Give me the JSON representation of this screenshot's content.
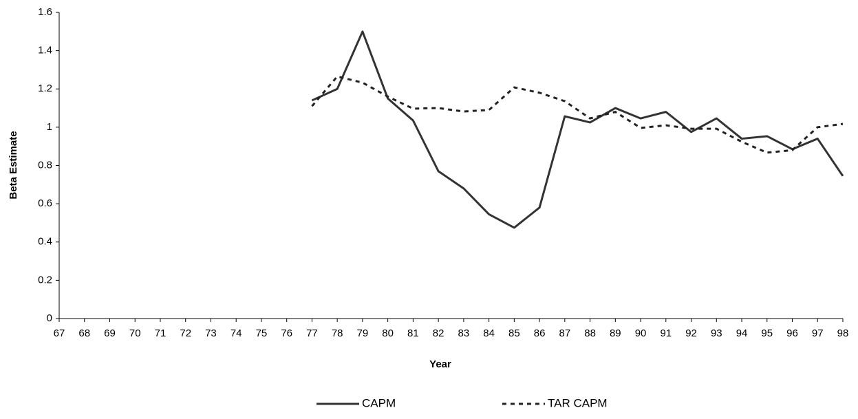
{
  "chart_data": {
    "type": "line",
    "x_label": "Year",
    "y_label": "Beta Estimate",
    "categories": [
      "67",
      "68",
      "69",
      "70",
      "71",
      "72",
      "73",
      "74",
      "75",
      "76",
      "77",
      "78",
      "79",
      "80",
      "81",
      "82",
      "83",
      "84",
      "85",
      "86",
      "87",
      "88",
      "89",
      "90",
      "91",
      "92",
      "93",
      "94",
      "95",
      "96",
      "97",
      "98"
    ],
    "series": [
      {
        "name": "CAPM",
        "color": "#333333",
        "line_style": "solid",
        "values": [
          null,
          null,
          null,
          null,
          null,
          null,
          null,
          null,
          null,
          null,
          1.14,
          1.2,
          1.5,
          1.15,
          1.035,
          0.77,
          0.68,
          0.545,
          0.475,
          0.58,
          1.057,
          1.025,
          1.1,
          1.046,
          1.08,
          0.975,
          1.046,
          0.94,
          0.953,
          0.885,
          0.94,
          0.745
        ]
      },
      {
        "name": "TAR CAPM",
        "color": "#222222",
        "line_style": "dashed",
        "values": [
          null,
          null,
          null,
          null,
          null,
          null,
          null,
          null,
          null,
          null,
          1.11,
          1.265,
          1.233,
          1.16,
          1.097,
          1.1,
          1.082,
          1.09,
          1.208,
          1.18,
          1.136,
          1.046,
          1.08,
          0.996,
          1.01,
          0.992,
          0.992,
          0.924,
          0.867,
          0.88,
          1.0,
          1.017
        ]
      }
    ],
    "ylim": [
      0,
      1.6
    ],
    "yticks": [
      0,
      0.2,
      0.4,
      0.6,
      0.8,
      1,
      1.2,
      1.4,
      1.6
    ],
    "grid": false,
    "legend_position": "bottom"
  }
}
